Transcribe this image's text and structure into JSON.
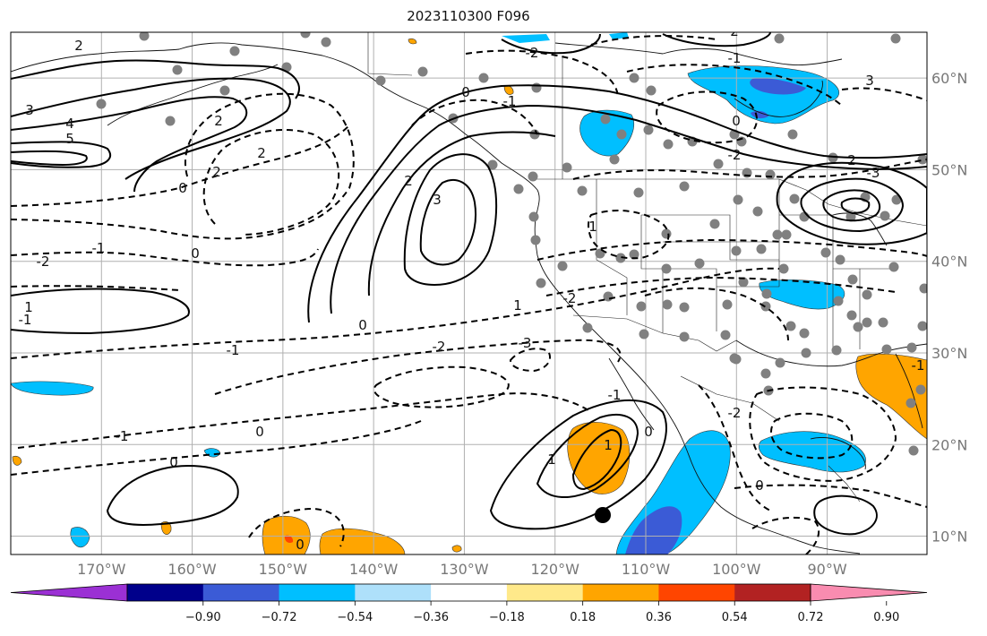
{
  "title": "2023110300 F096",
  "map": {
    "projection": "cylindrical",
    "lon_range": [
      -180,
      -79
    ],
    "lat_range": [
      8,
      65
    ],
    "lon_ticks": [
      {
        "lon": -170,
        "label": "170°W"
      },
      {
        "lon": -160,
        "label": "160°W"
      },
      {
        "lon": -150,
        "label": "150°W"
      },
      {
        "lon": -140,
        "label": "140°W"
      },
      {
        "lon": -130,
        "label": "130°W"
      },
      {
        "lon": -120,
        "label": "120°W"
      },
      {
        "lon": -110,
        "label": "110°W"
      },
      {
        "lon": -100,
        "label": "100°W"
      },
      {
        "lon": -90,
        "label": "90°W"
      }
    ],
    "lat_ticks": [
      {
        "lat": 60,
        "label": "60°N"
      },
      {
        "lat": 50,
        "label": "50°N"
      },
      {
        "lat": 40,
        "label": "40°N"
      },
      {
        "lat": 30,
        "label": "30°N"
      },
      {
        "lat": 20,
        "label": "20°N"
      },
      {
        "lat": 10,
        "label": "10°N"
      }
    ],
    "grid": true,
    "contour_style": "solid lines positive and zero, dashed lines negative",
    "contour_labels": [
      "2",
      "2",
      "3",
      "4",
      "5",
      "2",
      "2",
      "0",
      "-1",
      "2",
      "2",
      "3",
      "0",
      "-1",
      "-2",
      "1",
      "0",
      "1",
      "0",
      "-2",
      "-1",
      "-2",
      "-3",
      "1",
      "-2",
      "-1",
      "0",
      "-2",
      "0",
      "-1",
      "0",
      "0",
      "1",
      "1",
      "0",
      "-1",
      "-1",
      "-2",
      "-3",
      "2",
      "3",
      "0",
      "-1"
    ],
    "storm_marker": "black dot"
  },
  "colorbar": {
    "ticks": [
      "−0.90",
      "−0.72",
      "−0.54",
      "−0.36",
      "−0.18",
      "0.18",
      "0.36",
      "0.54",
      "0.72",
      "0.90"
    ],
    "colors": [
      "#9b30d4",
      "#00008b",
      "#3b5bd6",
      "#00bfff",
      "#aee0fa",
      "#ffffff",
      "#ffe98a",
      "#ffa500",
      "#ff4500",
      "#b22222",
      "#f98cb0"
    ],
    "extend": "both"
  }
}
